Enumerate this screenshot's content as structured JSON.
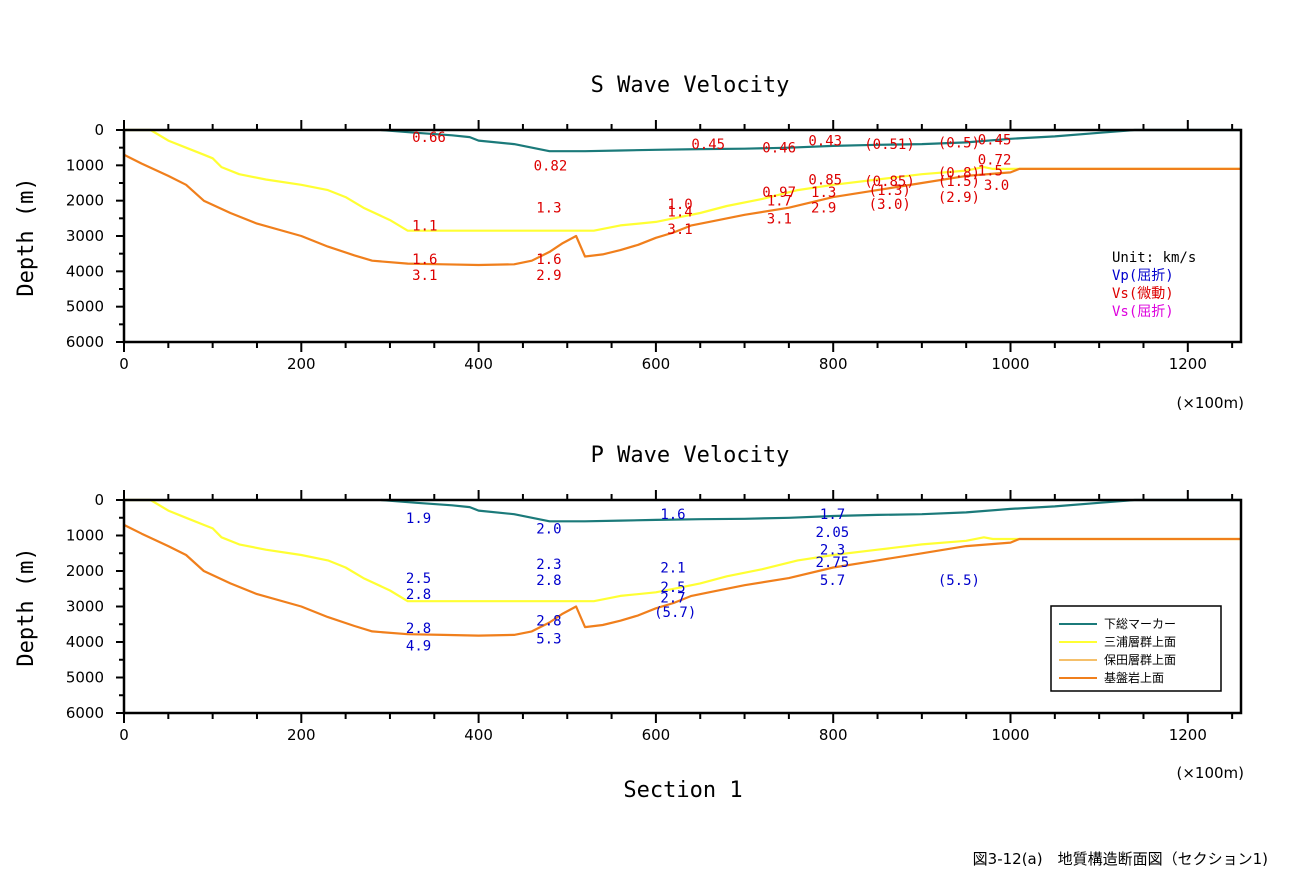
{
  "figure": {
    "caption": "図3-12(a)　地質構造断面図（セクション1)",
    "xlabel": "Section 1",
    "colors": {
      "shimousa_marker": "#1b7a7a",
      "miura_top": "#ffff33",
      "hota_top": "#f5c06b",
      "basement_top": "#f07f1c",
      "vp_label": "#0000cc",
      "vs_microtremor_label": "#dd0000",
      "vs_refraction_label": "#dd00dd"
    }
  },
  "chart_data": [
    {
      "type": "line",
      "title": "S Wave Velocity",
      "ylabel": "Depth (m)",
      "x_unit_label": "(×100m)",
      "xlim": [
        0,
        1260
      ],
      "ylim": [
        0,
        6000
      ],
      "y_inverted": true,
      "x_ticks": [
        0,
        200,
        400,
        600,
        800,
        1000,
        1200
      ],
      "y_ticks": [
        0,
        1000,
        2000,
        3000,
        4000,
        5000,
        6000
      ],
      "unit_legend": {
        "unit": "Unit: km/s",
        "items": [
          {
            "label": "Vp(屈折)",
            "color_key": "vp_label"
          },
          {
            "label": "Vs(微動)",
            "color_key": "vs_microtremor_label"
          },
          {
            "label": "Vs(屈折)",
            "color_key": "vs_refraction_label"
          }
        ]
      },
      "annotations": [
        {
          "text": "0.66",
          "x": 325,
          "y": 200
        },
        {
          "text": "0.82",
          "x": 462,
          "y": 1000
        },
        {
          "text": "0.45",
          "x": 640,
          "y": 400
        },
        {
          "text": "0.46",
          "x": 720,
          "y": 500
        },
        {
          "text": "0.43",
          "x": 772,
          "y": 300
        },
        {
          "text": "(0.51)",
          "x": 835,
          "y": 400
        },
        {
          "text": "(0.5)",
          "x": 918,
          "y": 350
        },
        {
          "text": "0.45",
          "x": 963,
          "y": 270
        },
        {
          "text": "0.72",
          "x": 963,
          "y": 830
        },
        {
          "text": "1.5",
          "x": 963,
          "y": 1150
        },
        {
          "text": "3.0",
          "x": 970,
          "y": 1550
        },
        {
          "text": "0.85",
          "x": 772,
          "y": 1400
        },
        {
          "text": "(0.85)",
          "x": 835,
          "y": 1450
        },
        {
          "text": "(0.8)",
          "x": 918,
          "y": 1200
        },
        {
          "text": "(1.5)",
          "x": 918,
          "y": 1450
        },
        {
          "text": "(1.3)",
          "x": 840,
          "y": 1700
        },
        {
          "text": "(3.0)",
          "x": 840,
          "y": 2100
        },
        {
          "text": "(2.9)",
          "x": 918,
          "y": 1900
        },
        {
          "text": "0.97",
          "x": 720,
          "y": 1750
        },
        {
          "text": "1.3",
          "x": 775,
          "y": 1750
        },
        {
          "text": "1.7",
          "x": 725,
          "y": 2000
        },
        {
          "text": "2.9",
          "x": 775,
          "y": 2200
        },
        {
          "text": "3.1",
          "x": 725,
          "y": 2500
        },
        {
          "text": "1.0",
          "x": 613,
          "y": 2100
        },
        {
          "text": "1.4",
          "x": 613,
          "y": 2300
        },
        {
          "text": "3.1",
          "x": 613,
          "y": 2800
        },
        {
          "text": "1.1",
          "x": 325,
          "y": 2700
        },
        {
          "text": "1.3",
          "x": 465,
          "y": 2200
        },
        {
          "text": "1.6",
          "x": 325,
          "y": 3650
        },
        {
          "text": "3.1",
          "x": 325,
          "y": 4100
        },
        {
          "text": "1.6",
          "x": 465,
          "y": 3650
        },
        {
          "text": "2.9",
          "x": 465,
          "y": 4100
        }
      ]
    },
    {
      "type": "line",
      "title": "P Wave Velocity",
      "ylabel": "Depth (m)",
      "x_unit_label": "(×100m)",
      "xlim": [
        0,
        1260
      ],
      "ylim": [
        0,
        6000
      ],
      "y_inverted": true,
      "x_ticks": [
        0,
        200,
        400,
        600,
        800,
        1000,
        1200
      ],
      "y_ticks": [
        0,
        1000,
        2000,
        3000,
        4000,
        5000,
        6000
      ],
      "legend": {
        "position": "right",
        "entries": [
          {
            "label": "下総マーカー",
            "color_key": "shimousa_marker"
          },
          {
            "label": "三浦層群上面",
            "color_key": "miura_top"
          },
          {
            "label": "保田層群上面",
            "color_key": "hota_top"
          },
          {
            "label": "基盤岩上面",
            "color_key": "basement_top"
          }
        ]
      },
      "annotations": [
        {
          "text": "1.9",
          "x": 318,
          "y": 500
        },
        {
          "text": "2.0",
          "x": 465,
          "y": 800
        },
        {
          "text": "1.6",
          "x": 605,
          "y": 400
        },
        {
          "text": "1.7",
          "x": 785,
          "y": 400
        },
        {
          "text": "2.05",
          "x": 780,
          "y": 900
        },
        {
          "text": "2.3",
          "x": 785,
          "y": 1400
        },
        {
          "text": "2.75",
          "x": 780,
          "y": 1750
        },
        {
          "text": "5.7",
          "x": 785,
          "y": 2250
        },
        {
          "text": "(5.5)",
          "x": 918,
          "y": 2250
        },
        {
          "text": "2.5",
          "x": 318,
          "y": 2200
        },
        {
          "text": "2.8",
          "x": 318,
          "y": 2650
        },
        {
          "text": "2.3",
          "x": 465,
          "y": 1800
        },
        {
          "text": "2.8",
          "x": 465,
          "y": 2250
        },
        {
          "text": "2.1",
          "x": 605,
          "y": 1900
        },
        {
          "text": "2.5",
          "x": 605,
          "y": 2450
        },
        {
          "text": "2.7",
          "x": 605,
          "y": 2750
        },
        {
          "text": "(5.7)",
          "x": 598,
          "y": 3150
        },
        {
          "text": "2.8",
          "x": 318,
          "y": 3600
        },
        {
          "text": "4.9",
          "x": 318,
          "y": 4100
        },
        {
          "text": "2.8",
          "x": 465,
          "y": 3400
        },
        {
          "text": "5.3",
          "x": 465,
          "y": 3900
        }
      ]
    }
  ],
  "profiles": [
    {
      "name": "下総マーカー",
      "color_key": "shimousa_marker",
      "x": [
        290,
        330,
        370,
        390,
        400,
        440,
        480,
        520,
        560,
        600,
        650,
        700,
        750,
        800,
        850,
        900,
        950,
        1000,
        1050,
        1100,
        1140,
        1200,
        1260
      ],
      "y": [
        0,
        80,
        150,
        200,
        300,
        400,
        600,
        600,
        580,
        560,
        540,
        530,
        500,
        450,
        420,
        400,
        350,
        250,
        180,
        80,
        0,
        0,
        0
      ]
    },
    {
      "name": "三浦層群上面",
      "color_key": "miura_top",
      "x": [
        0,
        30,
        50,
        70,
        90,
        100,
        110,
        130,
        160,
        200,
        230,
        250,
        270,
        300,
        320,
        340,
        400,
        450,
        500,
        530,
        560,
        600,
        620,
        650,
        680,
        720,
        760,
        800,
        850,
        900,
        950,
        970,
        980,
        1000,
        1010,
        1050,
        1100,
        1200,
        1260
      ],
      "y": [
        0,
        0,
        300,
        500,
        700,
        800,
        1050,
        1250,
        1400,
        1550,
        1700,
        1900,
        2200,
        2550,
        2850,
        2850,
        2850,
        2850,
        2850,
        2850,
        2700,
        2600,
        2500,
        2350,
        2150,
        1950,
        1700,
        1550,
        1400,
        1250,
        1150,
        1050,
        1100,
        1100,
        1100,
        1100,
        1100,
        1100,
        1100
      ]
    },
    {
      "name": "基盤岩上面",
      "color_key": "basement_top",
      "x": [
        0,
        20,
        50,
        70,
        90,
        120,
        150,
        200,
        230,
        260,
        280,
        320,
        360,
        400,
        440,
        460,
        480,
        495,
        510,
        520,
        540,
        560,
        580,
        600,
        620,
        640,
        660,
        700,
        750,
        800,
        850,
        900,
        950,
        1000,
        1010,
        1050,
        1100,
        1200,
        1260
      ],
      "y": [
        700,
        950,
        1300,
        1550,
        2000,
        2350,
        2650,
        3000,
        3300,
        3550,
        3700,
        3780,
        3800,
        3820,
        3800,
        3700,
        3450,
        3200,
        3000,
        3580,
        3520,
        3400,
        3250,
        3050,
        2900,
        2700,
        2600,
        2400,
        2200,
        1900,
        1700,
        1500,
        1300,
        1200,
        1100,
        1100,
        1100,
        1100,
        1100
      ]
    }
  ]
}
